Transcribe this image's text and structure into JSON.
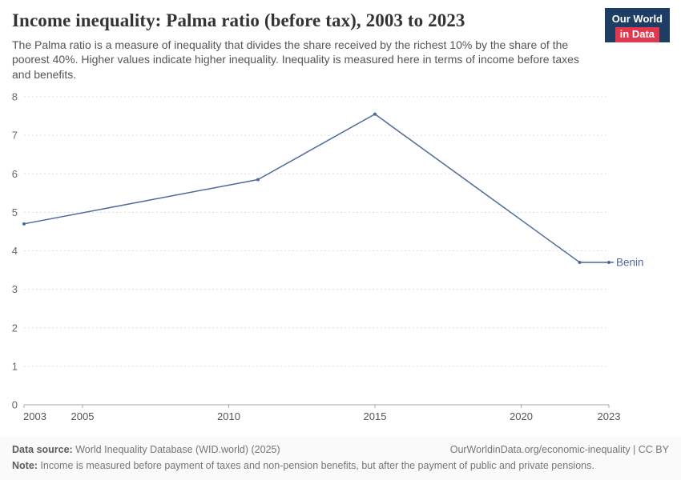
{
  "header": {
    "title": "Income inequality: Palma ratio (before tax), 2003 to 2023",
    "subtitle": "The Palma ratio is a measure of inequality that divides the share received by the richest 10% by the share of the poorest 40%. Higher values indicate higher inequality. Inequality is measured here in terms of income before taxes and benefits.",
    "logo": {
      "line1": "Our World",
      "line2": "in Data"
    }
  },
  "chart_data": {
    "type": "line",
    "title": "Income inequality: Palma ratio (before tax), 2003 to 2023",
    "xlabel": "",
    "ylabel": "",
    "xlim": [
      2003,
      2023
    ],
    "ylim": [
      0,
      8
    ],
    "x_ticks": [
      2003,
      2005,
      2010,
      2015,
      2020,
      2023
    ],
    "y_ticks": [
      0,
      1,
      2,
      3,
      4,
      5,
      6,
      7,
      8
    ],
    "grid": "horizontal-dashed",
    "legend_position": "end-of-line-label",
    "series": [
      {
        "name": "Benin",
        "color": "#4c6a9c",
        "x": [
          2003,
          2011,
          2015,
          2022,
          2023
        ],
        "y": [
          4.7,
          5.85,
          7.55,
          3.7,
          3.7
        ]
      }
    ],
    "end_label": "Benin"
  },
  "footer": {
    "source_bold": "Data source:",
    "source_rest": " World Inequality Database (WID.world) (2025)",
    "attribution": "OurWorldinData.org/economic-inequality | CC BY",
    "note_bold": "Note:",
    "note_rest": " Income is measured before payment of taxes and non-pension benefits, but after the payment of public and private pensions."
  }
}
